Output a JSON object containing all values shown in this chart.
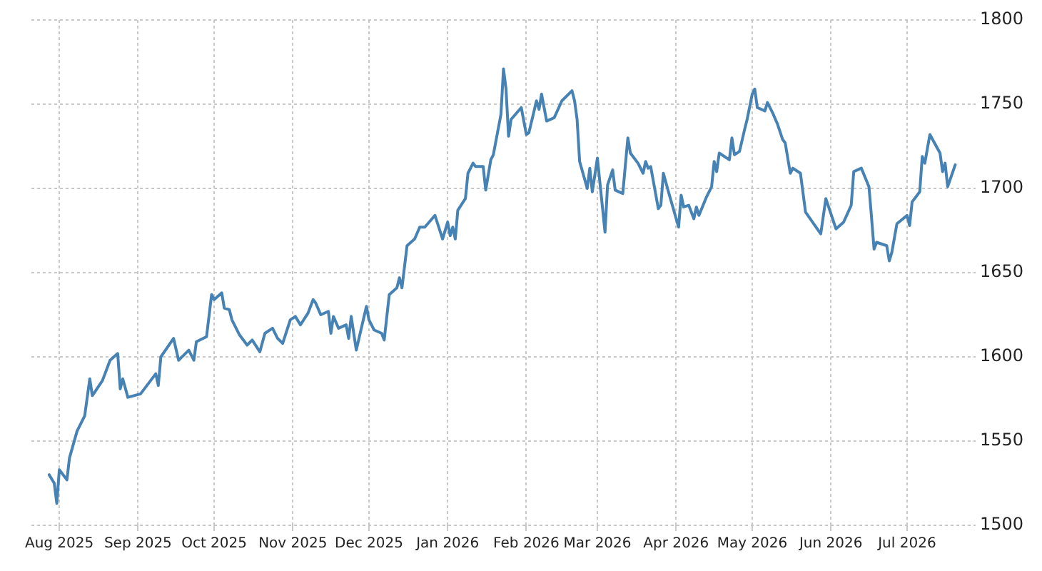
{
  "chart_data": {
    "type": "line",
    "x": [
      "2025-07-28",
      "2025-07-30",
      "2025-07-31",
      "2025-08-01",
      "2025-08-04",
      "2025-08-05",
      "2025-08-08",
      "2025-08-11",
      "2025-08-13",
      "2025-08-14",
      "2025-08-18",
      "2025-08-19",
      "2025-08-21",
      "2025-08-24",
      "2025-08-25",
      "2025-08-26",
      "2025-08-28",
      "2025-09-02",
      "2025-09-08",
      "2025-09-09",
      "2025-09-10",
      "2025-09-15",
      "2025-09-17",
      "2025-09-21",
      "2025-09-23",
      "2025-09-24",
      "2025-09-28",
      "2025-09-30",
      "2025-10-01",
      "2025-10-04",
      "2025-10-05",
      "2025-10-07",
      "2025-10-08",
      "2025-10-11",
      "2025-10-14",
      "2025-10-16",
      "2025-10-19",
      "2025-10-21",
      "2025-10-24",
      "2025-10-26",
      "2025-10-28",
      "2025-10-31",
      "2025-11-02",
      "2025-11-04",
      "2025-11-07",
      "2025-11-09",
      "2025-11-10",
      "2025-11-12",
      "2025-11-15",
      "2025-11-16",
      "2025-11-17",
      "2025-11-19",
      "2025-11-22",
      "2025-11-23",
      "2025-11-24",
      "2025-11-26",
      "2025-11-30",
      "2025-12-01",
      "2025-12-03",
      "2025-12-06",
      "2025-12-07",
      "2025-12-09",
      "2025-12-12",
      "2025-12-13",
      "2025-12-14",
      "2025-12-16",
      "2025-12-19",
      "2025-12-21",
      "2025-12-23",
      "2025-12-27",
      "2025-12-30",
      "2026-01-01",
      "2026-01-02",
      "2026-01-03",
      "2026-01-04",
      "2026-01-05",
      "2026-01-08",
      "2026-01-09",
      "2026-01-11",
      "2026-01-12",
      "2026-01-15",
      "2026-01-16",
      "2026-01-18",
      "2026-01-19",
      "2026-01-22",
      "2026-01-23",
      "2026-01-24",
      "2026-01-25",
      "2026-01-26",
      "2026-01-30",
      "2026-02-01",
      "2026-02-02",
      "2026-02-05",
      "2026-02-06",
      "2026-02-07",
      "2026-02-09",
      "2026-02-12",
      "2026-02-15",
      "2026-02-19",
      "2026-02-20",
      "2026-02-21",
      "2026-02-22",
      "2026-02-25",
      "2026-02-26",
      "2026-02-27",
      "2026-03-01",
      "2026-03-04",
      "2026-03-05",
      "2026-03-07",
      "2026-03-08",
      "2026-03-11",
      "2026-03-13",
      "2026-03-14",
      "2026-03-17",
      "2026-03-19",
      "2026-03-20",
      "2026-03-21",
      "2026-03-22",
      "2026-03-25",
      "2026-03-26",
      "2026-03-27",
      "2026-03-29",
      "2026-04-02",
      "2026-04-03",
      "2026-04-04",
      "2026-04-06",
      "2026-04-08",
      "2026-04-09",
      "2026-04-10",
      "2026-04-13",
      "2026-04-15",
      "2026-04-16",
      "2026-04-17",
      "2026-04-18",
      "2026-04-22",
      "2026-04-23",
      "2026-04-24",
      "2026-04-26",
      "2026-04-28",
      "2026-04-29",
      "2026-05-01",
      "2026-05-02",
      "2026-05-03",
      "2026-05-06",
      "2026-05-07",
      "2026-05-09",
      "2026-05-11",
      "2026-05-13",
      "2026-05-14",
      "2026-05-16",
      "2026-05-17",
      "2026-05-20",
      "2026-05-22",
      "2026-05-28",
      "2026-05-30",
      "2026-06-03",
      "2026-06-06",
      "2026-06-09",
      "2026-06-10",
      "2026-06-13",
      "2026-06-16",
      "2026-06-17",
      "2026-06-18",
      "2026-06-19",
      "2026-06-23",
      "2026-06-24",
      "2026-06-25",
      "2026-06-27",
      "2026-07-01",
      "2026-07-02",
      "2026-07-03",
      "2026-07-06",
      "2026-07-07",
      "2026-07-08",
      "2026-07-10",
      "2026-07-14",
      "2026-07-15",
      "2026-07-16",
      "2026-07-17",
      "2026-07-20"
    ],
    "series": [
      {
        "color": "#4682b4",
        "values": [
          1530,
          1525,
          1513,
          1533,
          1527,
          1540,
          1556,
          1565,
          1587,
          1577,
          1586,
          1590,
          1598,
          1602,
          1581,
          1587,
          1576,
          1578,
          1590,
          1583,
          1600,
          1611,
          1598,
          1604,
          1598,
          1609,
          1612,
          1637,
          1634,
          1638,
          1629,
          1628,
          1622,
          1613,
          1607,
          1610,
          1603,
          1614,
          1617,
          1611,
          1608,
          1622,
          1624,
          1619,
          1626,
          1634,
          1632,
          1625,
          1627,
          1614,
          1624,
          1617,
          1619,
          1611,
          1624,
          1604,
          1630,
          1622,
          1616,
          1614,
          1610,
          1637,
          1641,
          1647,
          1641,
          1666,
          1670,
          1677,
          1677,
          1684,
          1670,
          1680,
          1672,
          1677,
          1670,
          1687,
          1694,
          1709,
          1715,
          1713,
          1713,
          1699,
          1717,
          1720,
          1744,
          1771,
          1759,
          1731,
          1741,
          1748,
          1732,
          1733,
          1752,
          1747,
          1756,
          1740,
          1742,
          1752,
          1758,
          1752,
          1741,
          1716,
          1700,
          1712,
          1698,
          1718,
          1674,
          1702,
          1711,
          1699,
          1697,
          1730,
          1721,
          1715,
          1709,
          1716,
          1712,
          1713,
          1688,
          1690,
          1709,
          1698,
          1677,
          1696,
          1689,
          1690,
          1682,
          1689,
          1684,
          1695,
          1701,
          1716,
          1710,
          1721,
          1717,
          1730,
          1720,
          1722,
          1735,
          1741,
          1756,
          1759,
          1748,
          1746,
          1751,
          1745,
          1738,
          1729,
          1727,
          1709,
          1712,
          1709,
          1686,
          1673,
          1694,
          1676,
          1680,
          1690,
          1710,
          1712,
          1701,
          1683,
          1664,
          1668,
          1666,
          1657,
          1662,
          1679,
          1684,
          1678,
          1692,
          1698,
          1719,
          1715,
          1732,
          1721,
          1710,
          1715,
          1701,
          1714
        ]
      }
    ],
    "xlim": [
      "2025-07-21",
      "2026-07-28"
    ],
    "xticks": [
      {
        "value": "2025-08-01",
        "label": "Aug 2025"
      },
      {
        "value": "2025-09-01",
        "label": "Sep 2025"
      },
      {
        "value": "2025-10-01",
        "label": "Oct 2025"
      },
      {
        "value": "2025-11-01",
        "label": "Nov 2025"
      },
      {
        "value": "2025-12-01",
        "label": "Dec 2025"
      },
      {
        "value": "2026-01-01",
        "label": "Jan 2026"
      },
      {
        "value": "2026-02-01",
        "label": "Feb 2026"
      },
      {
        "value": "2026-03-01",
        "label": "Mar 2026"
      },
      {
        "value": "2026-04-01",
        "label": "Apr 2026"
      },
      {
        "value": "2026-05-01",
        "label": "May 2026"
      },
      {
        "value": "2026-06-01",
        "label": "Jun 2026"
      },
      {
        "value": "2026-07-01",
        "label": "Jul 2026"
      }
    ],
    "ylim": [
      1500,
      1800
    ],
    "yticks": [
      1500,
      1550,
      1600,
      1650,
      1700,
      1750,
      1800
    ],
    "grid": true,
    "legend": false,
    "marker": "none",
    "line_style": "solid"
  }
}
